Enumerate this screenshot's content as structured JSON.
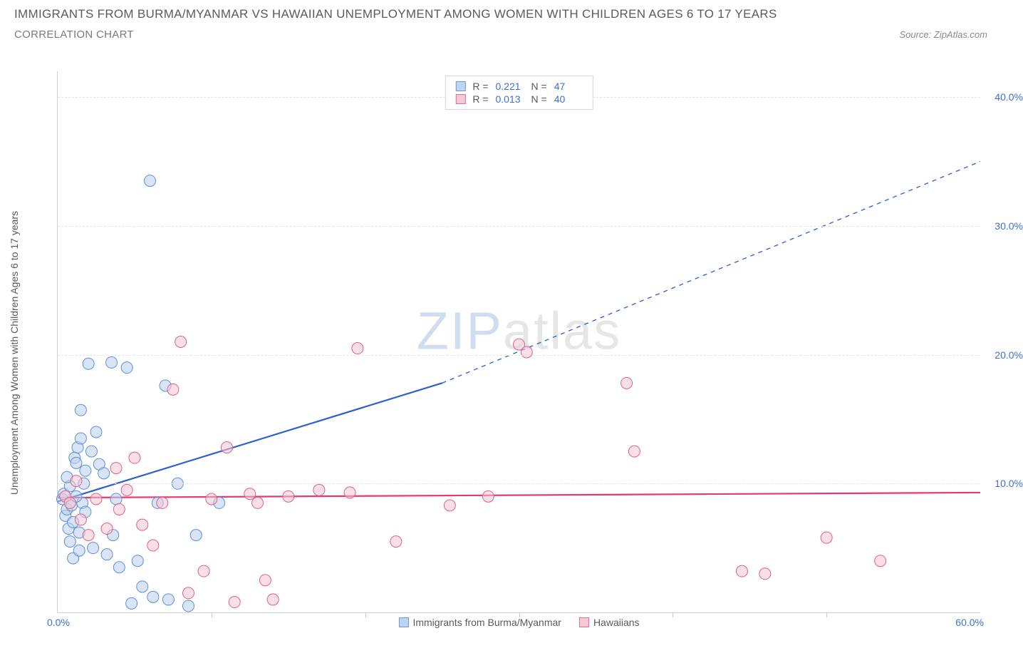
{
  "title": "IMMIGRANTS FROM BURMA/MYANMAR VS HAWAIIAN UNEMPLOYMENT AMONG WOMEN WITH CHILDREN AGES 6 TO 17 YEARS",
  "subtitle": "CORRELATION CHART",
  "source_prefix": "Source: ",
  "source_name": "ZipAtlas.com",
  "ylabel": "Unemployment Among Women with Children Ages 6 to 17 years",
  "watermark_left": "ZIP",
  "watermark_right": "atlas",
  "chart": {
    "type": "scatter",
    "xlim": [
      0,
      60
    ],
    "ylim": [
      0,
      42
    ],
    "x_axis_label_left": "0.0%",
    "x_axis_label_right": "60.0%",
    "x_tick_positions": [
      10,
      20,
      30,
      40,
      50
    ],
    "y_ticks": [
      {
        "v": 10,
        "label": "10.0%"
      },
      {
        "v": 20,
        "label": "20.0%"
      },
      {
        "v": 30,
        "label": "30.0%"
      },
      {
        "v": 40,
        "label": "40.0%"
      }
    ],
    "background_color": "#ffffff",
    "grid_color": "#e3e3e8",
    "axis_label_color": "#3d6fd6",
    "marker_radius": 8,
    "series": [
      {
        "name": "Immigrants from Burma/Myanmar",
        "fill": "#b9d0f0",
        "stroke": "#5d8fd8",
        "fill_opacity": 0.55,
        "R": "0.221",
        "N": "47",
        "trend": {
          "x1": 0,
          "y1": 8.6,
          "x2": 25,
          "y2": 17.8,
          "dash_x2": 60,
          "dash_y2": 35.0,
          "stroke": "#2c5fd0",
          "width": 2.2
        },
        "points": [
          [
            0.3,
            8.8
          ],
          [
            0.4,
            9.2
          ],
          [
            0.5,
            7.5
          ],
          [
            0.6,
            8.0
          ],
          [
            0.7,
            6.5
          ],
          [
            0.8,
            9.8
          ],
          [
            0.9,
            8.3
          ],
          [
            1.0,
            7.0
          ],
          [
            1.1,
            12.0
          ],
          [
            1.2,
            11.6
          ],
          [
            1.3,
            12.8
          ],
          [
            1.4,
            6.2
          ],
          [
            1.5,
            13.5
          ],
          [
            1.6,
            8.5
          ],
          [
            1.7,
            10.0
          ],
          [
            1.8,
            11.0
          ],
          [
            0.6,
            10.5
          ],
          [
            0.8,
            5.5
          ],
          [
            1.0,
            4.2
          ],
          [
            1.2,
            9.0
          ],
          [
            1.5,
            15.7
          ],
          [
            1.8,
            7.8
          ],
          [
            2.0,
            19.3
          ],
          [
            2.2,
            12.5
          ],
          [
            2.5,
            14.0
          ],
          [
            2.7,
            11.5
          ],
          [
            3.0,
            10.8
          ],
          [
            3.2,
            4.5
          ],
          [
            3.5,
            19.4
          ],
          [
            3.8,
            8.8
          ],
          [
            4.5,
            19.0
          ],
          [
            4.0,
            3.5
          ],
          [
            4.8,
            0.7
          ],
          [
            5.2,
            4.0
          ],
          [
            5.5,
            2.0
          ],
          [
            6.0,
            33.5
          ],
          [
            6.2,
            1.2
          ],
          [
            6.5,
            8.5
          ],
          [
            7.0,
            17.6
          ],
          [
            7.2,
            1.0
          ],
          [
            7.8,
            10.0
          ],
          [
            8.5,
            0.5
          ],
          [
            9.0,
            6.0
          ],
          [
            10.5,
            8.5
          ],
          [
            3.6,
            6.0
          ],
          [
            2.3,
            5.0
          ],
          [
            1.4,
            4.8
          ]
        ]
      },
      {
        "name": "Hawaiians",
        "fill": "#f4c5d1",
        "stroke": "#e15f87",
        "fill_opacity": 0.55,
        "R": "0.013",
        "N": "40",
        "trend": {
          "x1": 0,
          "y1": 8.9,
          "x2": 60,
          "y2": 9.3,
          "stroke": "#e13b72",
          "width": 2.2
        },
        "points": [
          [
            0.5,
            9.0
          ],
          [
            0.8,
            8.5
          ],
          [
            1.2,
            10.2
          ],
          [
            1.5,
            7.2
          ],
          [
            2.0,
            6.0
          ],
          [
            2.5,
            8.8
          ],
          [
            3.2,
            6.5
          ],
          [
            3.8,
            11.2
          ],
          [
            4.0,
            8.0
          ],
          [
            4.5,
            9.5
          ],
          [
            5.0,
            12.0
          ],
          [
            5.5,
            6.8
          ],
          [
            6.2,
            5.2
          ],
          [
            6.8,
            8.5
          ],
          [
            7.5,
            17.3
          ],
          [
            8.0,
            21.0
          ],
          [
            8.5,
            1.5
          ],
          [
            9.5,
            3.2
          ],
          [
            10.0,
            8.8
          ],
          [
            11.0,
            12.8
          ],
          [
            11.5,
            0.8
          ],
          [
            12.5,
            9.2
          ],
          [
            13.0,
            8.5
          ],
          [
            13.5,
            2.5
          ],
          [
            14.0,
            1.0
          ],
          [
            15.0,
            9.0
          ],
          [
            17.0,
            9.5
          ],
          [
            19.5,
            20.5
          ],
          [
            22.0,
            5.5
          ],
          [
            25.5,
            8.3
          ],
          [
            28.0,
            9.0
          ],
          [
            30.0,
            20.8
          ],
          [
            30.5,
            20.2
          ],
          [
            37.0,
            17.8
          ],
          [
            37.5,
            12.5
          ],
          [
            44.5,
            3.2
          ],
          [
            46.0,
            3.0
          ],
          [
            50.0,
            5.8
          ],
          [
            53.5,
            4.0
          ],
          [
            19.0,
            9.3
          ]
        ]
      }
    ],
    "top_legend": {
      "r_label": "R =",
      "n_label": "N ="
    }
  }
}
